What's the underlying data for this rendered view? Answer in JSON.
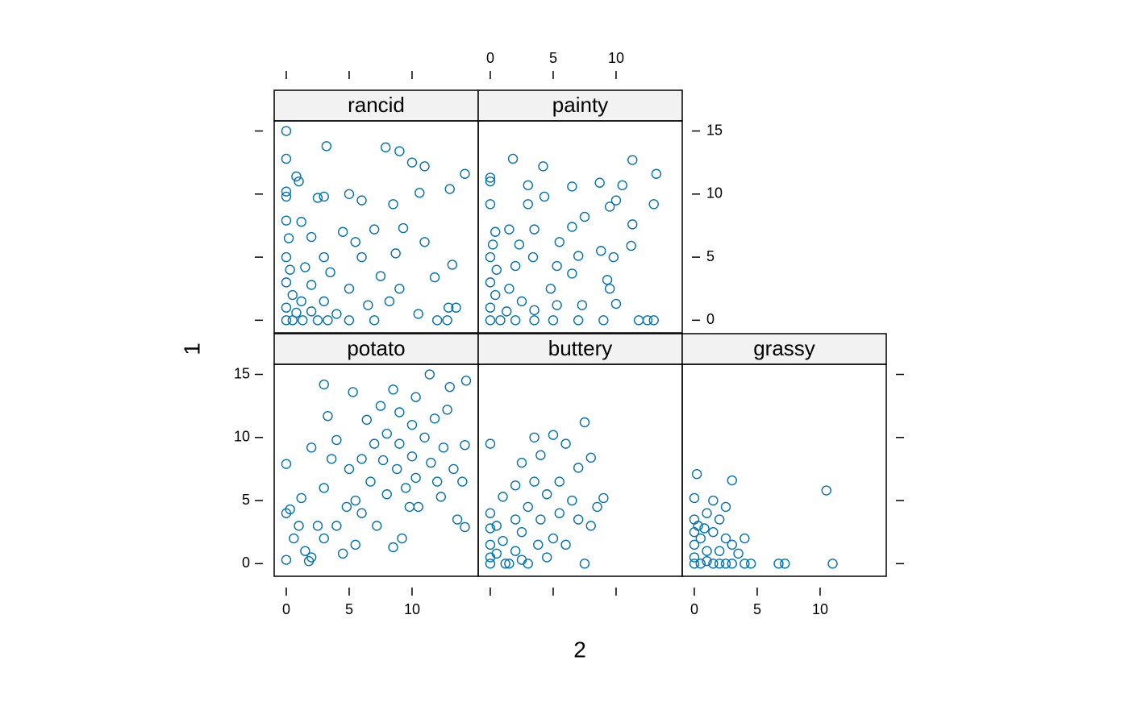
{
  "chart_data": {
    "type": "scatter",
    "xlabel": "2",
    "ylabel": "1",
    "color": "#0072b2",
    "xlim": [
      -0.96,
      15.26
    ],
    "ylim": [
      -1.0,
      15.8
    ],
    "xticks": [
      0,
      5,
      10
    ],
    "yticks": [
      0,
      5,
      10,
      15
    ],
    "panels": [
      {
        "name": "rancid",
        "x": [
          0,
          0,
          3.2,
          7.9,
          9,
          10,
          11,
          14.2,
          0.8,
          1,
          5,
          0,
          0,
          2.5,
          3,
          6,
          8.5,
          10.6,
          13,
          0,
          1.2,
          4.5,
          7,
          9.3,
          0.2,
          2,
          5.5,
          11,
          0,
          3,
          6,
          8.7,
          13.2,
          0.3,
          1.5,
          3.5,
          7.5,
          0,
          2,
          5,
          9,
          11.8,
          0.5,
          1.2,
          3,
          6.5,
          8.2,
          0,
          0.8,
          2,
          4,
          10.5,
          0,
          0.5,
          1.3,
          2.5,
          3.3,
          5,
          7,
          12,
          12.8,
          13.5,
          12.9
        ],
        "y": [
          15,
          12.8,
          13.8,
          13.7,
          13.4,
          12.5,
          12.2,
          11.6,
          11.4,
          11,
          10,
          10.2,
          9.8,
          9.7,
          9.8,
          9.5,
          9.2,
          10.1,
          10.4,
          7.9,
          7.8,
          7,
          7.2,
          7.3,
          6.5,
          6.6,
          6.2,
          6.2,
          5,
          5,
          5,
          5.3,
          4.4,
          4,
          4.2,
          3.8,
          3.5,
          3,
          2.8,
          2.5,
          2.5,
          3.4,
          2,
          1.5,
          1.5,
          1.2,
          1.5,
          1,
          0.6,
          0.7,
          0.5,
          0.5,
          0,
          0,
          0,
          0,
          0,
          0,
          0,
          0,
          0,
          1,
          1
        ]
      },
      {
        "name": "painty",
        "x": [
          0,
          0,
          1.8,
          4.2,
          11.3,
          13.2,
          3,
          6.5,
          8.7,
          10.5,
          0,
          3,
          4.3,
          10,
          13,
          7.5,
          9.5,
          0.4,
          1.5,
          3.5,
          6.5,
          11.3,
          0.2,
          2.3,
          5.5,
          8.8,
          11.2,
          0,
          3.4,
          7,
          9.8,
          0.5,
          2,
          5.3,
          6.5,
          9.3,
          0,
          1.5,
          4.8,
          9.5,
          0.4,
          2.5,
          5.3,
          7.3,
          10,
          0,
          1.3,
          3.5,
          0,
          0.8,
          2,
          3.5,
          5,
          7,
          9,
          11.8,
          12.5,
          13
        ],
        "y": [
          11.3,
          11,
          12.8,
          12.2,
          12.7,
          11.6,
          10.7,
          10.6,
          10.9,
          10.7,
          9.2,
          9.2,
          9.8,
          9.5,
          9.2,
          8.2,
          9,
          7,
          7.2,
          7.2,
          7.4,
          7.6,
          6,
          6,
          6.2,
          5.5,
          5.9,
          5,
          5,
          5.1,
          5,
          4,
          4.3,
          4.3,
          3.7,
          3.2,
          3,
          2.5,
          2.5,
          2.5,
          2,
          1.5,
          1.2,
          1.2,
          1.3,
          1,
          0.7,
          0.8,
          0,
          0,
          0,
          0,
          0,
          0,
          0,
          0,
          0,
          0
        ]
      },
      {
        "name": "potato",
        "x": [
          0,
          0,
          0,
          0.3,
          0.6,
          1,
          1.2,
          1.5,
          2,
          2,
          2.5,
          3,
          3,
          3.3,
          3.6,
          4,
          4,
          4.5,
          5,
          5.3,
          5.5,
          5.5,
          6,
          6,
          6.4,
          6.7,
          7,
          7.2,
          7.5,
          7.7,
          8,
          8,
          8.5,
          8.5,
          8.8,
          9,
          9,
          9.2,
          9.5,
          9.8,
          10,
          10,
          10.3,
          10.3,
          10.5,
          11,
          11.4,
          11.5,
          11.8,
          12,
          12.3,
          12.5,
          12.8,
          13,
          13.3,
          13.6,
          14,
          14.3,
          14.2,
          14.2,
          4.8,
          3,
          1.8
        ],
        "y": [
          7.9,
          4,
          0.3,
          4.3,
          2,
          3,
          5.2,
          1,
          9.2,
          0.5,
          3,
          14.2,
          6,
          11.7,
          8.3,
          9.8,
          3,
          0.8,
          7.5,
          13.6,
          5,
          1.5,
          8.3,
          4,
          11.4,
          6.5,
          9.5,
          3,
          12.5,
          8.2,
          10.3,
          5.5,
          13.8,
          1.3,
          7.5,
          12,
          9.5,
          2,
          6,
          4.5,
          11,
          8.5,
          13.2,
          6.8,
          4.5,
          10,
          15,
          8,
          11.5,
          6.5,
          5.3,
          9.2,
          12.2,
          14,
          7.5,
          3.5,
          6.5,
          14.5,
          9.4,
          2.9,
          4.5,
          2,
          0.2
        ]
      },
      {
        "name": "buttery",
        "x": [
          0,
          0,
          0,
          0,
          0,
          0,
          0.5,
          0.5,
          1,
          1,
          1.5,
          2,
          2,
          2,
          2.5,
          2.5,
          3,
          3,
          3.5,
          3.5,
          3.8,
          4,
          4,
          4.5,
          4.5,
          5,
          5,
          5.5,
          5.5,
          6,
          6,
          6.5,
          7,
          7,
          7.5,
          7.5,
          8,
          8,
          8.5,
          9,
          1.2,
          2.5
        ],
        "y": [
          9.5,
          4,
          2.8,
          1.5,
          0.5,
          0,
          3,
          0.8,
          5.3,
          1.8,
          0,
          6.2,
          3.5,
          1,
          8,
          2.5,
          4.5,
          0,
          10,
          6.5,
          1.5,
          8.6,
          3.5,
          5.5,
          0.5,
          10.2,
          2,
          6.5,
          4,
          9.5,
          1.5,
          5,
          7.6,
          3.5,
          11.2,
          0,
          8.4,
          3,
          4.5,
          5.2,
          0,
          0.3
        ]
      },
      {
        "name": "grassy",
        "x": [
          0,
          0,
          0,
          0,
          0,
          0,
          0.2,
          0.5,
          0.5,
          1,
          1,
          1,
          1.5,
          1.5,
          1.5,
          2,
          2,
          2,
          2.5,
          2.5,
          2.5,
          3,
          3,
          3,
          3.5,
          4,
          4,
          4.5,
          6.7,
          7.2,
          10.5,
          11,
          0.3,
          0.8
        ],
        "y": [
          5.2,
          3.5,
          2.5,
          1.5,
          0.5,
          0,
          7.1,
          2,
          0,
          4,
          1,
          0.2,
          5,
          2.5,
          0,
          3.5,
          1,
          0,
          4.5,
          2,
          0,
          6.6,
          1.5,
          0,
          0.8,
          2,
          0,
          0,
          0,
          0,
          5.8,
          0,
          3,
          2.8
        ]
      }
    ]
  }
}
